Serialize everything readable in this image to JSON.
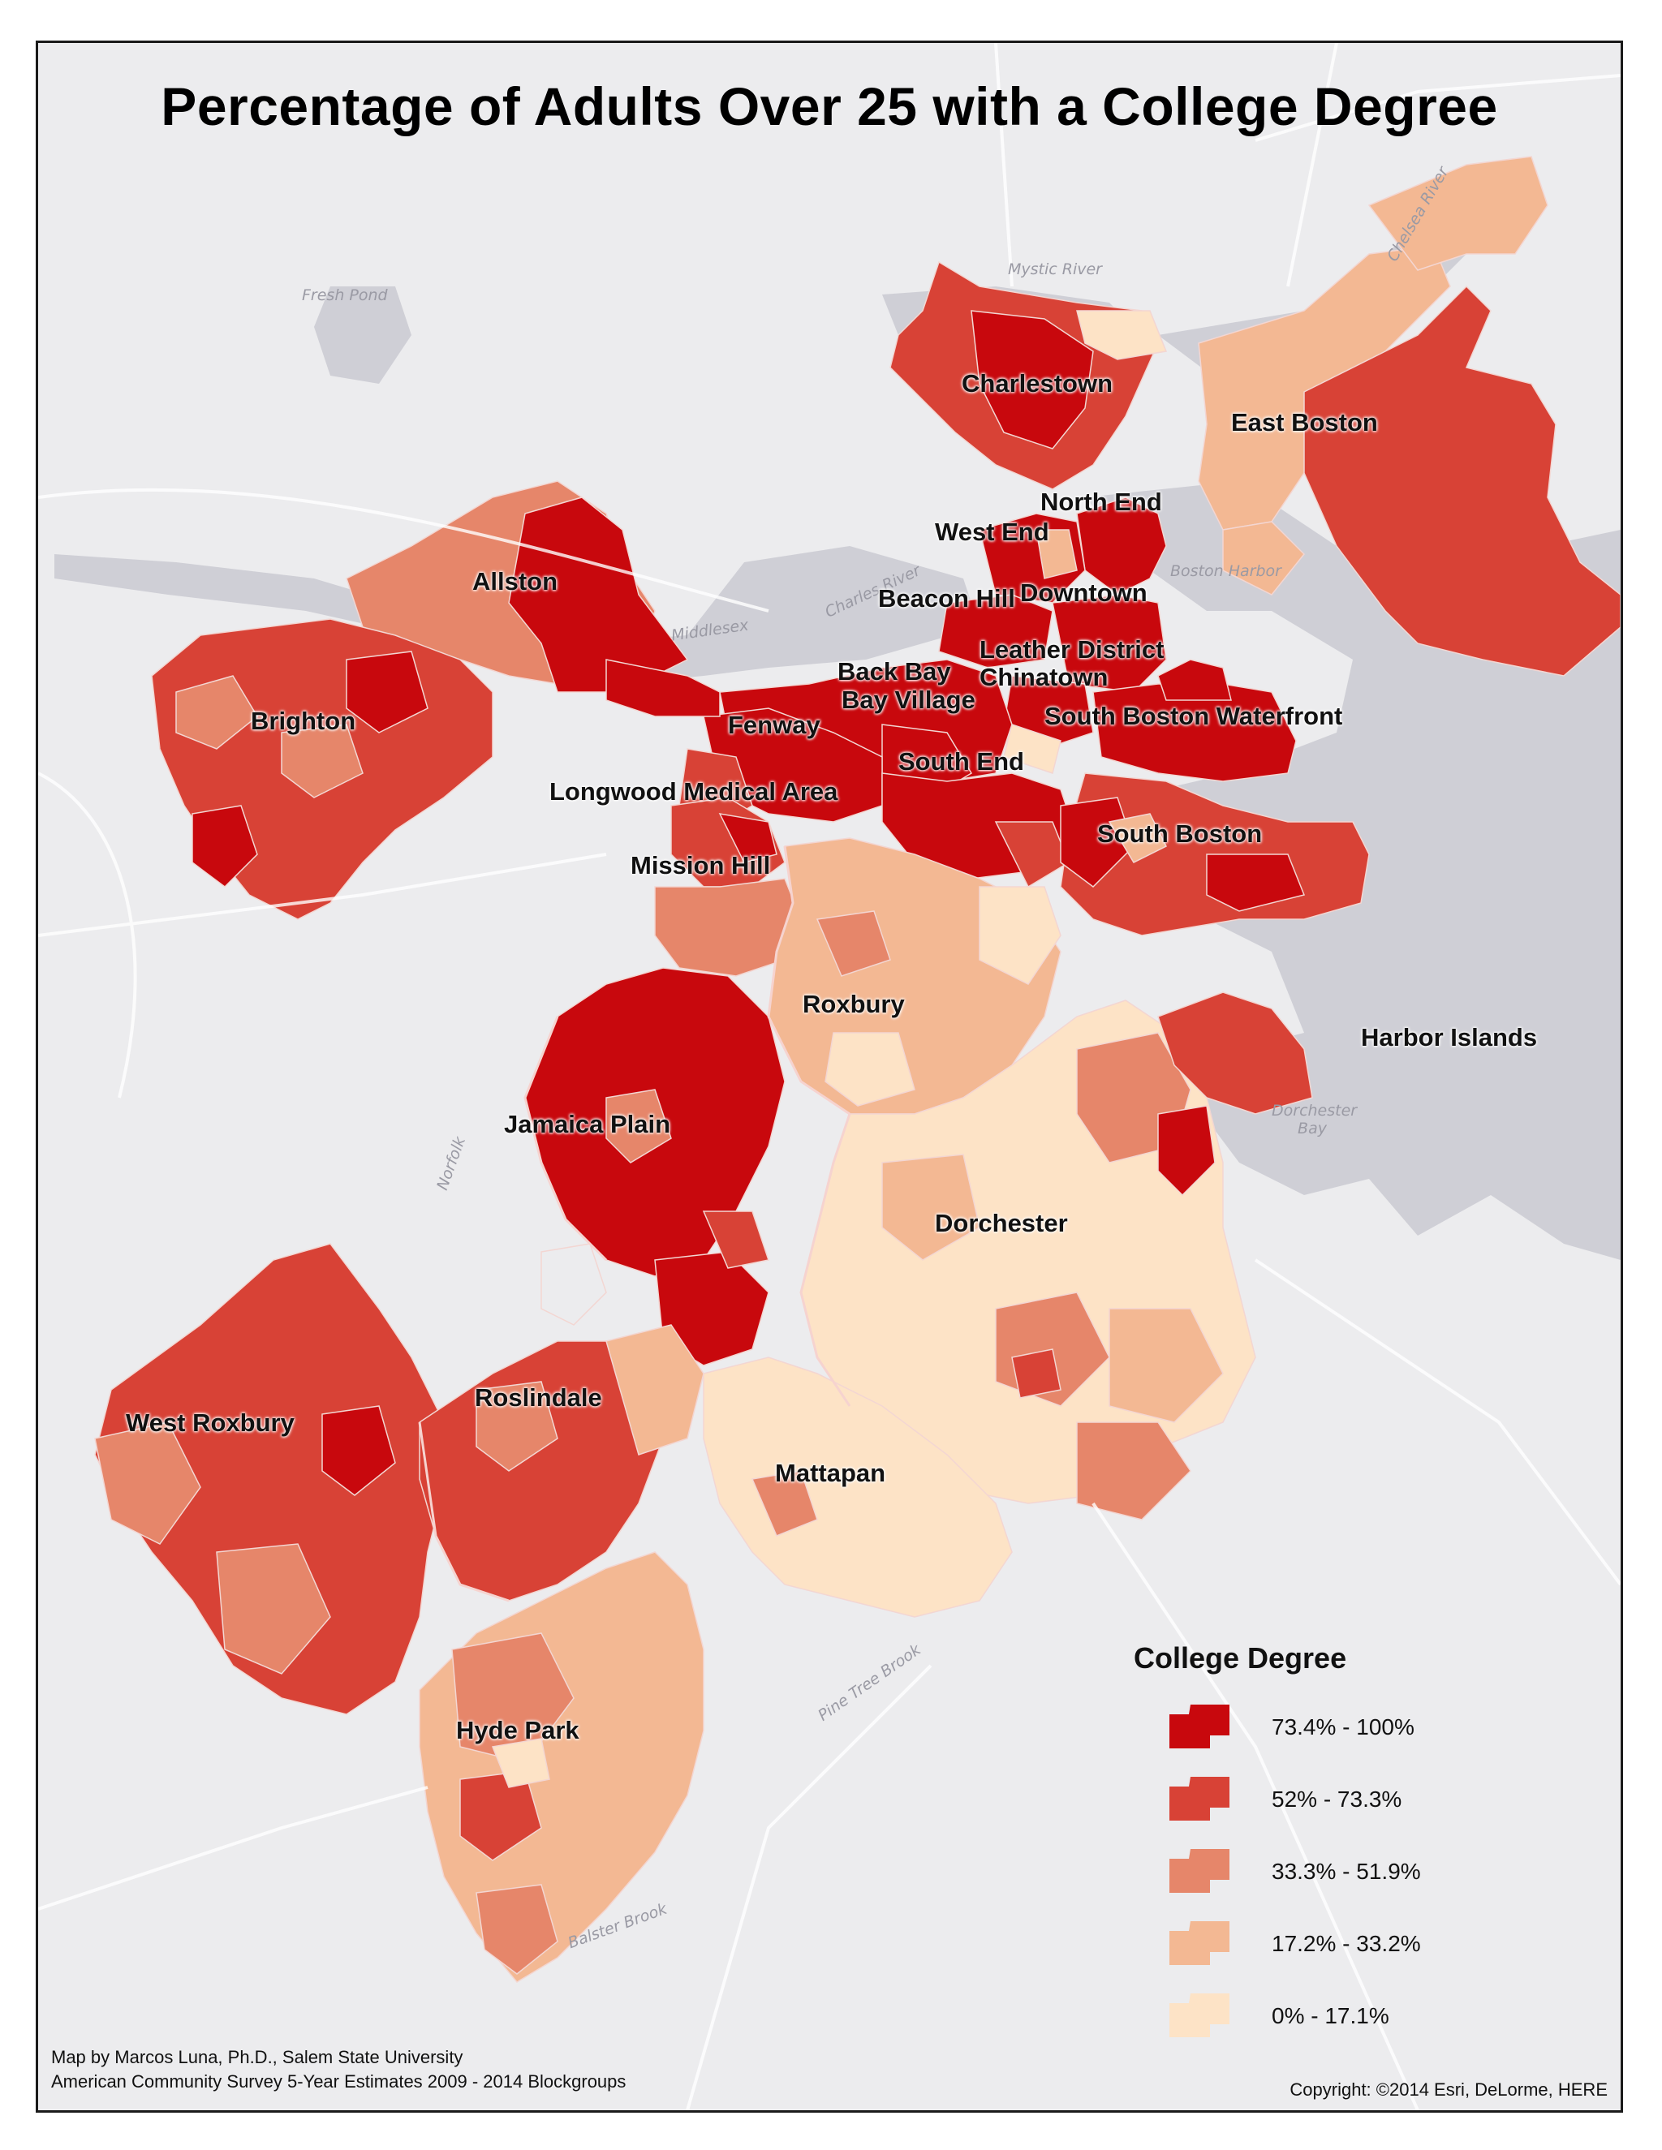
{
  "title": "Percentage of Adults Over 25 with a College Degree",
  "neighborhoods": {
    "charlestown": "Charlestown",
    "east_boston": "East Boston",
    "north_end": "North End",
    "west_end": "West End",
    "allston": "Allston",
    "beacon_hill": "Beacon Hill",
    "downtown": "Downtown",
    "leather_district": "Leather District",
    "chinatown": "Chinatown",
    "back_bay": "Back Bay",
    "bay_village": "Bay Village",
    "south_boston_waterfront": "South Boston Waterfront",
    "brighton": "Brighton",
    "fenway": "Fenway",
    "south_end": "South End",
    "longwood": "Longwood Medical Area",
    "south_boston": "South Boston",
    "mission_hill": "Mission Hill",
    "roxbury": "Roxbury",
    "harbor_islands": "Harbor Islands",
    "jamaica_plain": "Jamaica Plain",
    "dorchester": "Dorchester",
    "roslindale": "Roslindale",
    "west_roxbury": "West Roxbury",
    "mattapan": "Mattapan",
    "hyde_park": "Hyde Park"
  },
  "basemap_labels": {
    "fresh_pond": "Fresh Pond",
    "mystic_river": "Mystic River",
    "boston_harbor": "Boston Harbor",
    "charles_river": "Charles River",
    "middlesex": "Middlesex",
    "norfolk": "Norfolk",
    "dorchester_bay": "Dorchester Bay",
    "chelsea_river": "Chelsea River",
    "pine_tree_brook": "Pine Tree Brook",
    "balster_brook": "Balster Brook"
  },
  "legend": {
    "title": "College Degree",
    "items": [
      {
        "label": "73.4% - 100%",
        "color": "#c8080d"
      },
      {
        "label": "52% - 73.3%",
        "color": "#d84236"
      },
      {
        "label": "33.3% - 51.9%",
        "color": "#e6866a"
      },
      {
        "label": "17.2% - 33.2%",
        "color": "#f3b893"
      },
      {
        "label": "0% - 17.1%",
        "color": "#fde3c6"
      }
    ]
  },
  "credits": {
    "author": "Map by Marcos Luna, Ph.D., Salem State University",
    "source": "American Community Survey 5-Year Estimates 2009 - 2014 Blockgroups",
    "copyright": "Copyright: ©2014 Esri, DeLorme, HERE"
  },
  "colors": {
    "land": "#ececee",
    "water": "#cfcfd6",
    "road": "#ffffff"
  }
}
